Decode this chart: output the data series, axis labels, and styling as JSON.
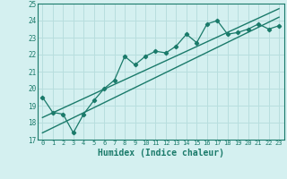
{
  "xlabel": "Humidex (Indice chaleur)",
  "bg_color": "#d4f0f0",
  "grid_color": "#b8dede",
  "line_color": "#1a7a6a",
  "xlim": [
    -0.5,
    23.5
  ],
  "ylim": [
    17,
    25
  ],
  "yticks": [
    17,
    18,
    19,
    20,
    21,
    22,
    23,
    24,
    25
  ],
  "xticks": [
    0,
    1,
    2,
    3,
    4,
    5,
    6,
    7,
    8,
    9,
    10,
    11,
    12,
    13,
    14,
    15,
    16,
    17,
    18,
    19,
    20,
    21,
    22,
    23
  ],
  "series1": [
    19.5,
    18.6,
    18.5,
    17.4,
    18.5,
    19.3,
    20.0,
    20.5,
    21.9,
    21.4,
    21.9,
    22.2,
    22.1,
    22.5,
    23.2,
    22.7,
    23.8,
    24.0,
    23.2,
    23.3,
    23.5,
    23.8,
    23.5,
    23.7
  ],
  "series2_y": [
    18.3,
    24.7
  ],
  "series3_y": [
    17.4,
    24.2
  ],
  "xlabel_fontsize": 7,
  "xlabel_fontweight": "bold",
  "tick_fontsize": 5,
  "ytick_fontsize": 5.5
}
